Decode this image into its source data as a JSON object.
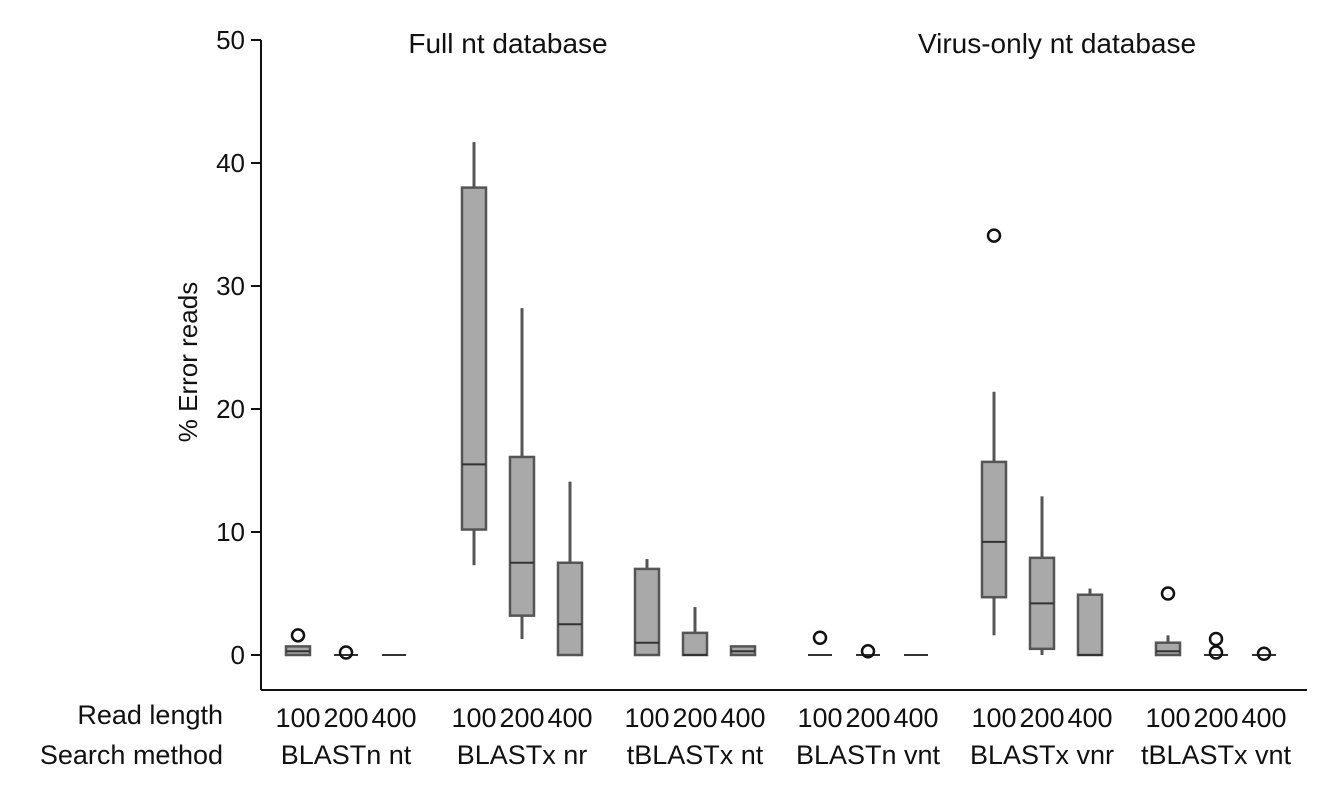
{
  "chart_data": {
    "type": "box",
    "ylabel": "% Error reads",
    "ylim": [
      0,
      50
    ],
    "yticks": [
      0,
      10,
      20,
      30,
      40,
      50
    ],
    "grid": false,
    "group_titles": [
      "Full nt database",
      "Virus-only nt database"
    ],
    "row_labels": [
      "Read length",
      "Search method"
    ],
    "read_lengths": [
      "100",
      "200",
      "400"
    ],
    "methods": [
      "BLASTn nt",
      "BLASTx nr",
      "tBLASTx nt",
      "BLASTn vnt",
      "BLASTx vnr",
      "tBLASTx vnt"
    ],
    "box_fill": "#a9a9a9",
    "box_stroke": "#555555",
    "boxes": [
      {
        "method": "BLASTn nt",
        "read_length": "100",
        "min": 0,
        "q1": 0,
        "median": 0.3,
        "q3": 0.7,
        "max": 0.7,
        "outliers": [
          1.6
        ]
      },
      {
        "method": "BLASTn nt",
        "read_length": "200",
        "min": 0,
        "q1": 0,
        "median": 0,
        "q3": 0,
        "max": 0,
        "outliers": [
          0.2
        ]
      },
      {
        "method": "BLASTn nt",
        "read_length": "400",
        "min": 0,
        "q1": 0,
        "median": 0,
        "q3": 0,
        "max": 0,
        "outliers": []
      },
      {
        "method": "BLASTx nr",
        "read_length": "100",
        "min": 7.3,
        "q1": 10.2,
        "median": 15.5,
        "q3": 38.0,
        "max": 41.7,
        "outliers": []
      },
      {
        "method": "BLASTx nr",
        "read_length": "200",
        "min": 1.3,
        "q1": 3.2,
        "median": 7.5,
        "q3": 16.1,
        "max": 28.2,
        "outliers": []
      },
      {
        "method": "BLASTx nr",
        "read_length": "400",
        "min": 0,
        "q1": 0,
        "median": 2.5,
        "q3": 7.5,
        "max": 14.1,
        "outliers": []
      },
      {
        "method": "tBLASTx nt",
        "read_length": "100",
        "min": 0,
        "q1": 0,
        "median": 1.0,
        "q3": 7.0,
        "max": 7.8,
        "outliers": []
      },
      {
        "method": "tBLASTx nt",
        "read_length": "200",
        "min": 0,
        "q1": 0,
        "median": 0,
        "q3": 1.8,
        "max": 3.9,
        "outliers": []
      },
      {
        "method": "tBLASTx nt",
        "read_length": "400",
        "min": 0,
        "q1": 0,
        "median": 0.3,
        "q3": 0.7,
        "max": 0.7,
        "outliers": []
      },
      {
        "method": "BLASTn vnt",
        "read_length": "100",
        "min": 0,
        "q1": 0,
        "median": 0,
        "q3": 0,
        "max": 0,
        "outliers": [
          1.4
        ]
      },
      {
        "method": "BLASTn vnt",
        "read_length": "200",
        "min": 0,
        "q1": 0,
        "median": 0,
        "q3": 0,
        "max": 0,
        "outliers": [
          0.3
        ]
      },
      {
        "method": "BLASTn vnt",
        "read_length": "400",
        "min": 0,
        "q1": 0,
        "median": 0,
        "q3": 0,
        "max": 0,
        "outliers": []
      },
      {
        "method": "BLASTx vnr",
        "read_length": "100",
        "min": 1.6,
        "q1": 4.7,
        "median": 9.2,
        "q3": 15.7,
        "max": 21.4,
        "outliers": [
          34.1
        ]
      },
      {
        "method": "BLASTx vnr",
        "read_length": "200",
        "min": 0,
        "q1": 0.5,
        "median": 4.2,
        "q3": 7.9,
        "max": 12.9,
        "outliers": []
      },
      {
        "method": "BLASTx vnr",
        "read_length": "400",
        "min": 0,
        "q1": 0,
        "median": 0,
        "q3": 4.9,
        "max": 5.4,
        "outliers": []
      },
      {
        "method": "tBLASTx vnt",
        "read_length": "100",
        "min": 0,
        "q1": 0,
        "median": 0.3,
        "q3": 1.0,
        "max": 1.6,
        "outliers": [
          5.0
        ]
      },
      {
        "method": "tBLASTx vnt",
        "read_length": "200",
        "min": 0,
        "q1": 0,
        "median": 0,
        "q3": 0,
        "max": 0,
        "outliers": [
          1.3,
          0.2
        ]
      },
      {
        "method": "tBLASTx vnt",
        "read_length": "400",
        "min": 0,
        "q1": 0,
        "median": 0,
        "q3": 0,
        "max": 0,
        "outliers": [
          0.1
        ]
      }
    ]
  }
}
